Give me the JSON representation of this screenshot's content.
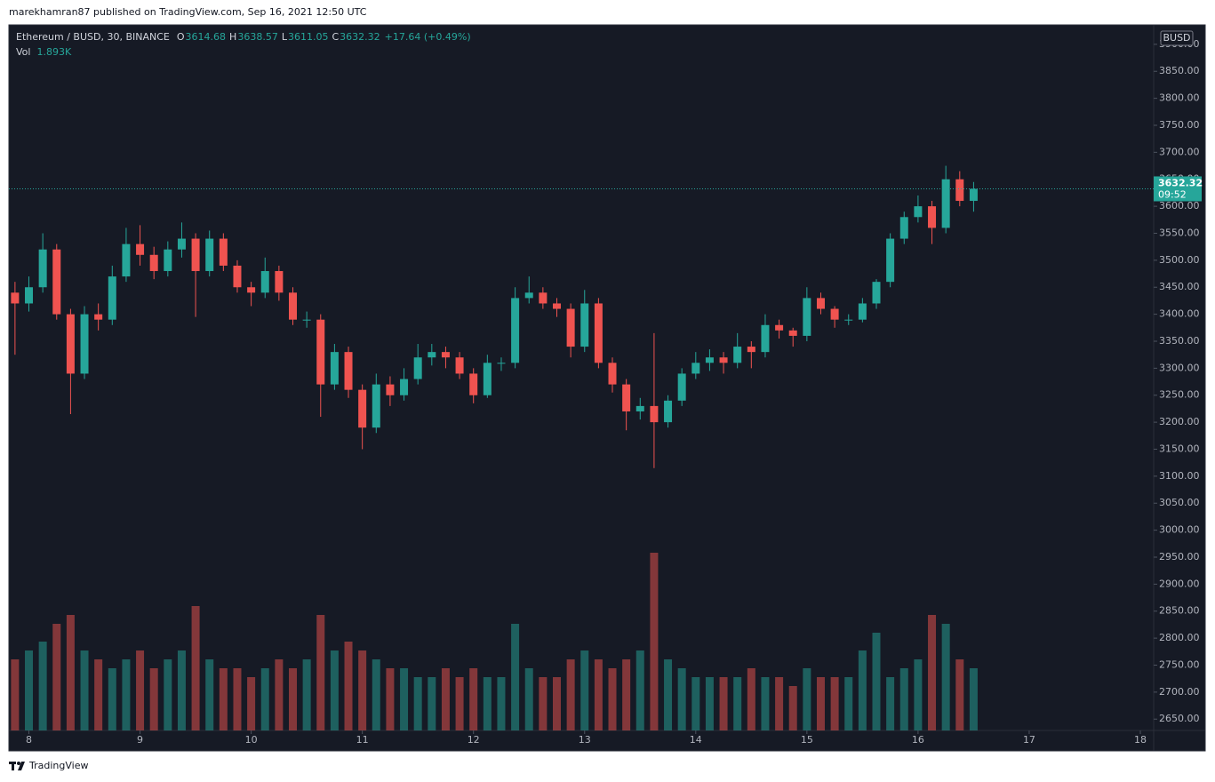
{
  "header": {
    "published": "marekhamran87 published on TradingView.com, Sep 16, 2021 12:50 UTC"
  },
  "footer": {
    "brand": "TradingView"
  },
  "chart_data": {
    "type": "candlestick",
    "legend": {
      "symbol": "Ethereum / BUSD, 30, BINANCE",
      "o_label": "O",
      "open": 3614.68,
      "h_label": "H",
      "high": 3638.57,
      "l_label": "L",
      "low": 3611.05,
      "c_label": "C",
      "change": "+17.64 (+0.49%)",
      "vol_label": "Vol",
      "vol": "1.893K"
    },
    "currency": "BUSD",
    "last_price": 3632.32,
    "countdown": "09:52",
    "colors": {
      "up": "#26a69a",
      "down": "#ef5350"
    },
    "x": [
      7.875,
      8,
      8.125,
      8.25,
      8.375,
      8.5,
      8.625,
      8.75,
      8.875,
      9,
      9.125,
      9.25,
      9.375,
      9.5,
      9.625,
      9.75,
      9.875,
      10,
      10.125,
      10.25,
      10.375,
      10.5,
      10.625,
      10.75,
      10.875,
      11,
      11.125,
      11.25,
      11.375,
      11.5,
      11.625,
      11.75,
      11.875,
      12,
      12.125,
      12.25,
      12.375,
      12.5,
      12.625,
      12.75,
      12.875,
      13,
      13.125,
      13.25,
      13.375,
      13.5,
      13.625,
      13.75,
      13.875,
      14,
      14.125,
      14.25,
      14.375,
      14.5,
      14.625,
      14.75,
      14.875,
      15,
      15.125,
      15.25,
      15.375,
      15.5,
      15.625,
      15.75,
      15.875,
      16,
      16.125,
      16.25,
      16.375,
      16.5
    ],
    "open": [
      3440,
      3420,
      3450,
      3520,
      3400,
      3290,
      3400,
      3390,
      3470,
      3530,
      3510,
      3480,
      3520,
      3540,
      3480,
      3540,
      3490,
      3450,
      3440,
      3480,
      3440,
      3390,
      3390,
      3270,
      3330,
      3260,
      3190,
      3270,
      3250,
      3280,
      3320,
      3330,
      3320,
      3290,
      3250,
      3310,
      3310,
      3430,
      3440,
      3420,
      3410,
      3340,
      3420,
      3310,
      3270,
      3220,
      3230,
      3200,
      3240,
      3290,
      3310,
      3320,
      3310,
      3340,
      3330,
      3380,
      3370,
      3360,
      3430,
      3410,
      3390,
      3390,
      3420,
      3460,
      3540,
      3580,
      3600,
      3560,
      3650,
      3610
    ],
    "high": [
      3460,
      3470,
      3550,
      3530,
      3410,
      3415,
      3420,
      3490,
      3560,
      3565,
      3525,
      3535,
      3570,
      3550,
      3555,
      3550,
      3500,
      3460,
      3505,
      3490,
      3450,
      3405,
      3400,
      3345,
      3340,
      3270,
      3290,
      3285,
      3300,
      3345,
      3345,
      3340,
      3330,
      3300,
      3325,
      3320,
      3450,
      3470,
      3450,
      3430,
      3420,
      3445,
      3430,
      3320,
      3280,
      3245,
      3365,
      3250,
      3300,
      3330,
      3335,
      3330,
      3365,
      3350,
      3400,
      3390,
      3375,
      3450,
      3440,
      3415,
      3400,
      3430,
      3465,
      3550,
      3590,
      3620,
      3610,
      3675,
      3665,
      3645
    ],
    "low": [
      3325,
      3405,
      3440,
      3390,
      3215,
      3280,
      3370,
      3380,
      3460,
      3490,
      3465,
      3470,
      3505,
      3395,
      3470,
      3480,
      3440,
      3415,
      3430,
      3425,
      3380,
      3375,
      3210,
      3260,
      3245,
      3150,
      3180,
      3230,
      3240,
      3270,
      3305,
      3300,
      3280,
      3235,
      3245,
      3295,
      3300,
      3420,
      3410,
      3395,
      3320,
      3330,
      3300,
      3255,
      3185,
      3205,
      3115,
      3190,
      3230,
      3280,
      3295,
      3290,
      3300,
      3300,
      3320,
      3355,
      3340,
      3350,
      3400,
      3375,
      3380,
      3385,
      3410,
      3450,
      3530,
      3570,
      3530,
      3550,
      3600,
      3590
    ],
    "close": [
      3420,
      3450,
      3520,
      3400,
      3290,
      3400,
      3390,
      3470,
      3530,
      3510,
      3480,
      3520,
      3540,
      3480,
      3540,
      3490,
      3450,
      3440,
      3480,
      3440,
      3390,
      3390,
      3270,
      3330,
      3260,
      3190,
      3270,
      3250,
      3280,
      3320,
      3330,
      3320,
      3290,
      3250,
      3310,
      3310,
      3430,
      3440,
      3420,
      3410,
      3340,
      3420,
      3310,
      3270,
      3220,
      3230,
      3200,
      3240,
      3290,
      3310,
      3320,
      3310,
      3340,
      3330,
      3380,
      3370,
      3360,
      3430,
      3410,
      3390,
      3390,
      3420,
      3460,
      3540,
      3580,
      3600,
      3560,
      3650,
      3610,
      3632.32
    ],
    "volume": [
      8,
      9,
      10,
      12,
      13,
      9,
      8,
      7,
      8,
      9,
      7,
      8,
      9,
      14,
      8,
      7,
      7,
      6,
      7,
      8,
      7,
      8,
      13,
      9,
      10,
      9,
      8,
      7,
      7,
      6,
      6,
      7,
      6,
      7,
      6,
      6,
      12,
      7,
      6,
      6,
      8,
      9,
      8,
      7,
      8,
      9,
      20,
      8,
      7,
      6,
      6,
      6,
      6,
      7,
      6,
      6,
      5,
      7,
      6,
      6,
      6,
      9,
      11,
      6,
      7,
      8,
      13,
      12,
      8,
      7
    ],
    "xlim": [
      7.82,
      18.12
    ],
    "xticks": [
      8,
      9,
      10,
      11,
      12,
      13,
      14,
      15,
      16,
      17,
      18
    ],
    "ylim": [
      2629,
      3936
    ],
    "yticks": [
      {
        "value": 2650,
        "label": "2650.00"
      },
      {
        "value": 2700,
        "label": "2700.00"
      },
      {
        "value": 2750,
        "label": "2750.00"
      },
      {
        "value": 2800,
        "label": "2800.00"
      },
      {
        "value": 2850,
        "label": "2850.00"
      },
      {
        "value": 2900,
        "label": "2900.00"
      },
      {
        "value": 2950,
        "label": "2950.00"
      },
      {
        "value": 3000,
        "label": "3000.00"
      },
      {
        "value": 3050,
        "label": "3050.00"
      },
      {
        "value": 3100,
        "label": "3100.00"
      },
      {
        "value": 3150,
        "label": "3150.00"
      },
      {
        "value": 3200,
        "label": "3200.00"
      },
      {
        "value": 3250,
        "label": "3250.00"
      },
      {
        "value": 3300,
        "label": "3300.00"
      },
      {
        "value": 3350,
        "label": "3350.00"
      },
      {
        "value": 3400,
        "label": "3400.00"
      },
      {
        "value": 3450,
        "label": "3450.00"
      },
      {
        "value": 3500,
        "label": "3500.00"
      },
      {
        "value": 3550,
        "label": "3550.00"
      },
      {
        "value": 3600,
        "label": "3600.00"
      },
      {
        "value": 3650,
        "label": "3650.00"
      },
      {
        "value": 3700,
        "label": "3700.00"
      },
      {
        "value": 3750,
        "label": "3750.00"
      },
      {
        "value": 3800,
        "label": "3800.00"
      },
      {
        "value": 3850,
        "label": "3850.00"
      },
      {
        "value": 3900,
        "label": "3900.00"
      }
    ]
  }
}
